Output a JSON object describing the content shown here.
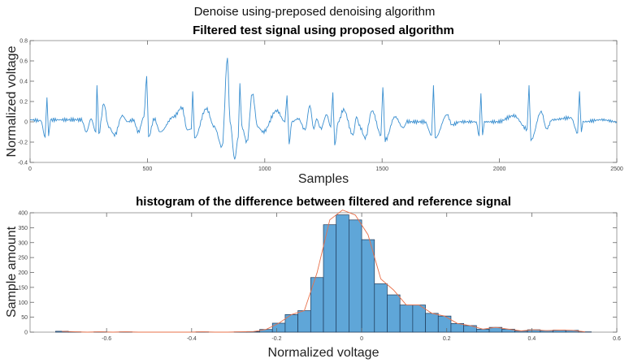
{
  "figure": {
    "suptitle": "Denoise using-preposed denoising algorithm"
  },
  "chart_data": [
    {
      "type": "line",
      "title": "Filtered test signal using proposed algorithm",
      "xlabel": "Samples",
      "ylabel": "Normalized voltage",
      "xlim": [
        0,
        2500
      ],
      "ylim": [
        -0.4,
        0.8
      ],
      "xticks": [
        0,
        500,
        1000,
        1500,
        2000,
        2500
      ],
      "yticks": [
        -0.4,
        -0.2,
        0,
        0.2,
        0.4,
        0.6,
        0.8
      ],
      "grid": false,
      "color": "#3a8fd0",
      "points": [
        [
          0,
          0.02
        ],
        [
          46,
          0.01
        ],
        [
          64,
          -0.15
        ],
        [
          72,
          0.24
        ],
        [
          79,
          -0.14
        ],
        [
          87,
          0.02
        ],
        [
          140,
          0.02
        ],
        [
          219,
          0.02
        ],
        [
          240,
          -0.1
        ],
        [
          260,
          0.03
        ],
        [
          280,
          -0.1
        ],
        [
          285,
          0.36
        ],
        [
          293,
          -0.12
        ],
        [
          314,
          0.18
        ],
        [
          335,
          -0.05
        ],
        [
          360,
          -0.13
        ],
        [
          393,
          0.06
        ],
        [
          416,
          0.0
        ],
        [
          439,
          0.02
        ],
        [
          462,
          -0.1
        ],
        [
          485,
          0.05
        ],
        [
          497,
          0.45
        ],
        [
          505,
          -0.15
        ],
        [
          529,
          0.03
        ],
        [
          554,
          -0.1
        ],
        [
          612,
          0.05
        ],
        [
          647,
          0.14
        ],
        [
          670,
          -0.08
        ],
        [
          687,
          -0.07
        ],
        [
          693,
          0.3
        ],
        [
          701,
          -0.16
        ],
        [
          751,
          0.13
        ],
        [
          785,
          -0.05
        ],
        [
          818,
          -0.25
        ],
        [
          841,
          0.63
        ],
        [
          852,
          0.0
        ],
        [
          872,
          -0.37
        ],
        [
          887,
          -0.15
        ],
        [
          894,
          0.38
        ],
        [
          902,
          -0.05
        ],
        [
          924,
          -0.2
        ],
        [
          947,
          0.28
        ],
        [
          970,
          -0.05
        ],
        [
          993,
          -0.1
        ],
        [
          1051,
          0.11
        ],
        [
          1086,
          0.0
        ],
        [
          1095,
          0.26
        ],
        [
          1104,
          -0.22
        ],
        [
          1115,
          0.0
        ],
        [
          1143,
          0.03
        ],
        [
          1172,
          -0.08
        ],
        [
          1192,
          0.16
        ],
        [
          1209,
          -0.07
        ],
        [
          1221,
          0.03
        ],
        [
          1238,
          -0.07
        ],
        [
          1264,
          0.07
        ],
        [
          1281,
          -0.05
        ],
        [
          1290,
          0.29
        ],
        [
          1298,
          -0.23
        ],
        [
          1313,
          0.0
        ],
        [
          1336,
          0.12
        ],
        [
          1376,
          -0.13
        ],
        [
          1391,
          0.05
        ],
        [
          1405,
          -0.05
        ],
        [
          1428,
          -0.16
        ],
        [
          1457,
          0.11
        ],
        [
          1495,
          -0.13
        ],
        [
          1503,
          0.34
        ],
        [
          1513,
          -0.18
        ],
        [
          1555,
          0.05
        ],
        [
          1590,
          -0.06
        ],
        [
          1607,
          0.0
        ],
        [
          1682,
          0.0
        ],
        [
          1711,
          -0.13
        ],
        [
          1719,
          0.36
        ],
        [
          1726,
          -0.16
        ],
        [
          1777,
          0.07
        ],
        [
          1798,
          -0.03
        ],
        [
          1832,
          0.0
        ],
        [
          1901,
          0.0
        ],
        [
          1913,
          -0.14
        ],
        [
          1921,
          0.28
        ],
        [
          1928,
          -0.13
        ],
        [
          1936,
          0.0
        ],
        [
          1994,
          0.0
        ],
        [
          2061,
          0.06
        ],
        [
          2118,
          -0.07
        ],
        [
          2126,
          0.36
        ],
        [
          2134,
          -0.18
        ],
        [
          2178,
          0.1
        ],
        [
          2201,
          -0.07
        ],
        [
          2224,
          0.02
        ],
        [
          2305,
          0.04
        ],
        [
          2333,
          -0.11
        ],
        [
          2341,
          0.3
        ],
        [
          2349,
          -0.1
        ],
        [
          2356,
          0.0
        ],
        [
          2437,
          0.02
        ],
        [
          2500,
          0.0
        ]
      ]
    },
    {
      "type": "bar",
      "title": "histogram of the difference between filtered and reference signal",
      "xlabel": "Normalized voltage",
      "ylabel": "Sample amount",
      "xlim": [
        -0.78,
        0.6
      ],
      "ylim": [
        0,
        400
      ],
      "xticks": [
        -0.6,
        -0.4,
        -0.2,
        0,
        0.2,
        0.4,
        0.6
      ],
      "yticks": [
        0,
        50,
        100,
        150,
        200,
        250,
        300,
        350,
        400
      ],
      "grid": false,
      "bin_start": -0.72,
      "bin_width": 0.03,
      "bar_color": "#5fa6d8",
      "edge_color": "#1f3a5a",
      "curve_color": "#e8704a",
      "counts": [
        3,
        1,
        0,
        1,
        0,
        1,
        0,
        0,
        0,
        0,
        0,
        1,
        0,
        0,
        1,
        2,
        9,
        30,
        59,
        72,
        183,
        360,
        393,
        376,
        310,
        162,
        125,
        91,
        91,
        63,
        54,
        29,
        22,
        10,
        16,
        10,
        4,
        8,
        5,
        7,
        6,
        1
      ]
    }
  ]
}
